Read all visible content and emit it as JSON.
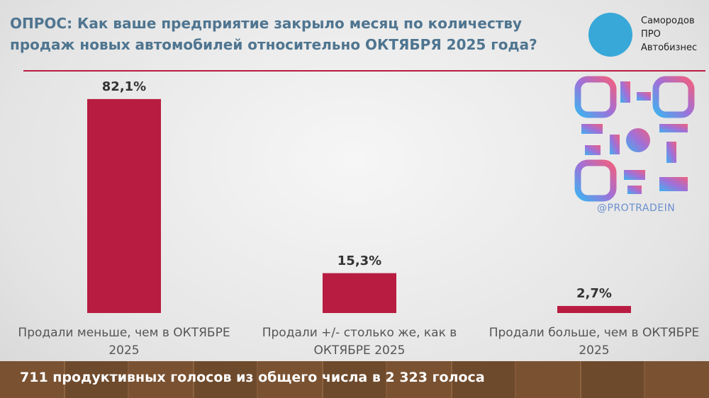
{
  "chart_data": {
    "type": "bar",
    "title": "ОПРОС: Как ваше предприятие закрыло месяц по количеству продаж новых автомобилей относительно ОКТЯБРЯ 2025 года?",
    "categories": [
      "Продали меньше, чем в ОКТЯБРЕ 2025",
      "Продали +/- столько же, как в ОКТЯБРЕ 2025",
      "Продали больше, чем в ОКТЯБРЕ 2025"
    ],
    "values": [
      82.1,
      15.3,
      2.7
    ],
    "value_labels": [
      "82,1%",
      "15,3%",
      "2,7%"
    ],
    "color": "#b81c40",
    "footnote": "711 продуктивных голосов из общего числа в 2 323 голоса"
  },
  "brand": {
    "name": "Самородов ПРО Автобизнес",
    "handle": "@PROTRADEIN"
  }
}
